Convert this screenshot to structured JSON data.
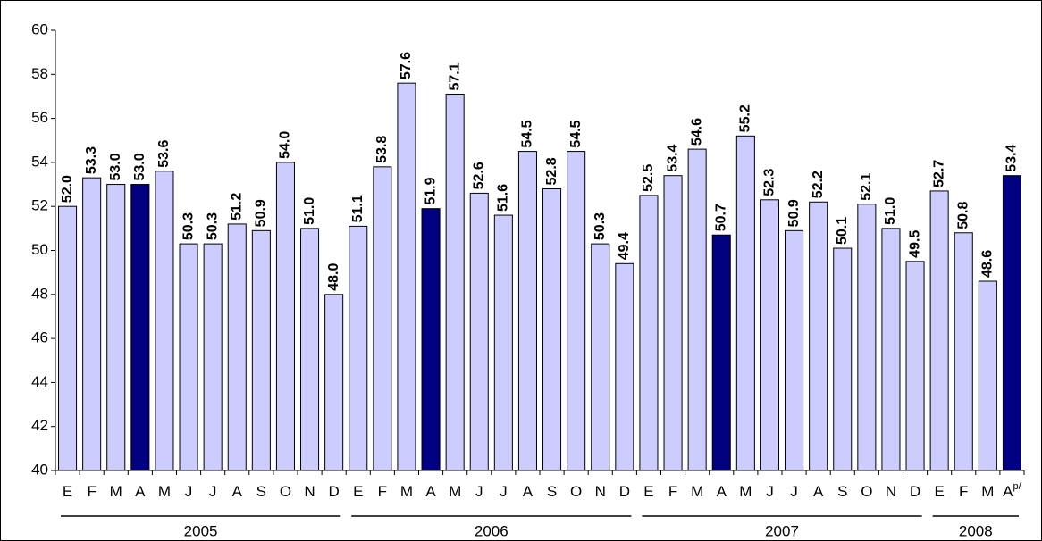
{
  "chart_data": {
    "type": "bar",
    "categories": [
      "E",
      "F",
      "M",
      "A",
      "M",
      "J",
      "J",
      "A",
      "S",
      "O",
      "N",
      "D",
      "E",
      "F",
      "M",
      "A",
      "M",
      "J",
      "J",
      "A",
      "S",
      "O",
      "N",
      "D",
      "E",
      "F",
      "M",
      "A",
      "M",
      "J",
      "J",
      "A",
      "S",
      "O",
      "N",
      "D",
      "E",
      "F",
      "M",
      "A"
    ],
    "last_category_superscript": "p/",
    "values": [
      52.0,
      53.3,
      53.0,
      53.0,
      53.6,
      50.3,
      50.3,
      51.2,
      50.9,
      54.0,
      51.0,
      48.0,
      51.1,
      53.8,
      57.6,
      51.9,
      57.1,
      52.6,
      51.6,
      54.5,
      52.8,
      54.5,
      50.3,
      49.4,
      52.5,
      53.4,
      54.6,
      50.7,
      55.2,
      52.3,
      50.9,
      52.2,
      50.1,
      52.1,
      51.0,
      49.5,
      52.7,
      50.8,
      48.6,
      53.4
    ],
    "value_labels": [
      "52.0",
      "53.3",
      "53.0",
      "53.0",
      "53.6",
      "50.3",
      "50.3",
      "51.2",
      "50.9",
      "54.0",
      "51.0",
      "48.0",
      "51.1",
      "53.8",
      "57.6",
      "51.9",
      "57.1",
      "52.6",
      "51.6",
      "54.5",
      "52.8",
      "54.5",
      "50.3",
      "49.4",
      "52.5",
      "53.4",
      "54.6",
      "50.7",
      "55.2",
      "52.3",
      "50.9",
      "52.2",
      "50.1",
      "52.1",
      "51.0",
      "49.5",
      "52.7",
      "50.8",
      "48.6",
      "53.4"
    ],
    "colors": [
      "#ccccff",
      "#ccccff",
      "#ccccff",
      "#000080",
      "#ccccff",
      "#ccccff",
      "#ccccff",
      "#ccccff",
      "#ccccff",
      "#ccccff",
      "#ccccff",
      "#ccccff",
      "#ccccff",
      "#ccccff",
      "#ccccff",
      "#000080",
      "#ccccff",
      "#ccccff",
      "#ccccff",
      "#ccccff",
      "#ccccff",
      "#ccccff",
      "#ccccff",
      "#ccccff",
      "#ccccff",
      "#ccccff",
      "#ccccff",
      "#000080",
      "#ccccff",
      "#ccccff",
      "#ccccff",
      "#ccccff",
      "#ccccff",
      "#ccccff",
      "#ccccff",
      "#ccccff",
      "#ccccff",
      "#ccccff",
      "#ccccff",
      "#000080"
    ],
    "groups": [
      {
        "label": "2005",
        "span": 12
      },
      {
        "label": "2006",
        "span": 12
      },
      {
        "label": "2007",
        "span": 12
      },
      {
        "label": "2008",
        "span": 4
      }
    ],
    "ylim": [
      40,
      60
    ],
    "yticks": [
      40,
      42,
      44,
      46,
      48,
      50,
      52,
      54,
      56,
      58,
      60
    ]
  }
}
